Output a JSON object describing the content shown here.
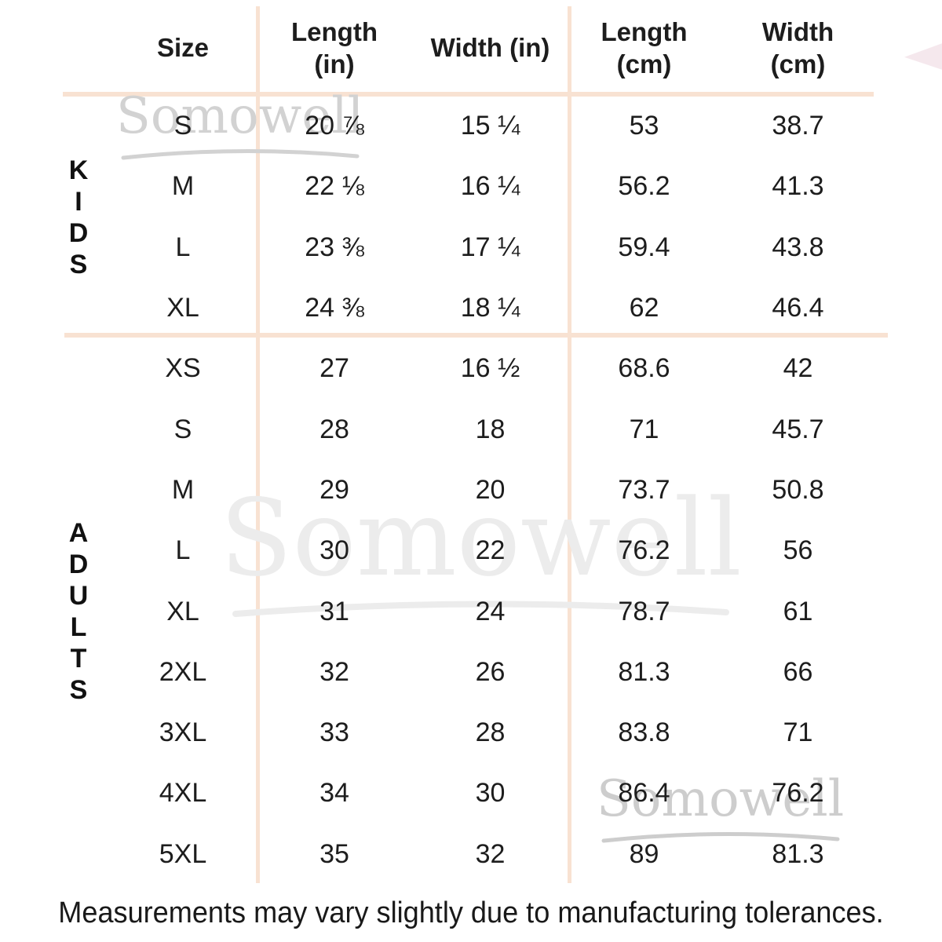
{
  "watermark": {
    "text": "Somowell"
  },
  "footer": {
    "note": "Measurements may vary slightly due to manufacturing tolerances."
  },
  "colors": {
    "background": "#ffffff",
    "divider": "#f8e2d2",
    "text": "#1d1d1d",
    "watermark_top": "#d2d2d2",
    "watermark_mid": "#ececec",
    "watermark_bottom": "#cdcdcd"
  },
  "chart_data": {
    "type": "table",
    "columns": [
      {
        "line1": "Size",
        "line2": ""
      },
      {
        "line1": "Length",
        "line2": "(in)"
      },
      {
        "line1": "Width (in)",
        "line2": ""
      },
      {
        "line1": "Length",
        "line2": "(cm)"
      },
      {
        "line1": "Width",
        "line2": "(cm)"
      }
    ],
    "sections": [
      {
        "name": "KIDS",
        "rows": [
          [
            "S",
            "20 ⅞",
            "15 ¼",
            "53",
            "38.7"
          ],
          [
            "M",
            "22 ⅛",
            "16 ¼",
            "56.2",
            "41.3"
          ],
          [
            "L",
            "23 ⅜",
            "17 ¼",
            "59.4",
            "43.8"
          ],
          [
            "XL",
            "24 ⅜",
            "18 ¼",
            "62",
            "46.4"
          ]
        ]
      },
      {
        "name": "ADULTS",
        "rows": [
          [
            "XS",
            "27",
            "16 ½",
            "68.6",
            "42"
          ],
          [
            "S",
            "28",
            "18",
            "71",
            "45.7"
          ],
          [
            "M",
            "29",
            "20",
            "73.7",
            "50.8"
          ],
          [
            "L",
            "30",
            "22",
            "76.2",
            "56"
          ],
          [
            "XL",
            "31",
            "24",
            "78.7",
            "61"
          ],
          [
            "2XL",
            "32",
            "26",
            "81.3",
            "66"
          ],
          [
            "3XL",
            "33",
            "28",
            "83.8",
            "71"
          ],
          [
            "4XL",
            "34",
            "30",
            "86.4",
            "76.2"
          ],
          [
            "5XL",
            "35",
            "32",
            "89",
            "81.3"
          ]
        ]
      }
    ]
  }
}
